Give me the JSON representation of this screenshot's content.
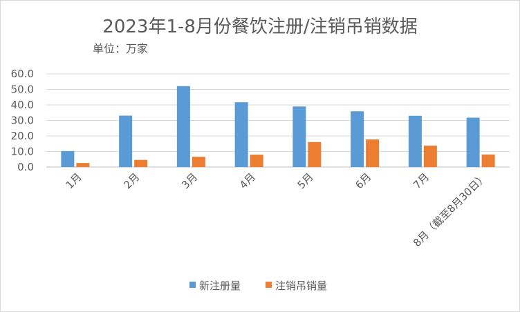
{
  "chart_data": {
    "type": "bar",
    "title": "2023年1-8月份餐饮注册/注销吊销数据",
    "subtitle": "单位：万家",
    "categories": [
      "1月",
      "2月",
      "3月",
      "4月",
      "5月",
      "6月",
      "7月",
      "8月（截至8月30日）"
    ],
    "series": [
      {
        "name": "新注册量",
        "color": "#5b9bd5",
        "values": [
          10.3,
          33.1,
          52.1,
          41.7,
          39.0,
          35.9,
          33.0,
          31.8
        ]
      },
      {
        "name": "注销吊销量",
        "color": "#ed7d31",
        "values": [
          2.6,
          4.6,
          6.6,
          8.0,
          16.1,
          17.8,
          13.8,
          8.1
        ]
      }
    ],
    "ylim": [
      0,
      60
    ],
    "yticks": [
      "0.0",
      "10.0",
      "20.0",
      "30.0",
      "40.0",
      "50.0",
      "60.0"
    ],
    "grid": true,
    "legend": "bottom"
  }
}
